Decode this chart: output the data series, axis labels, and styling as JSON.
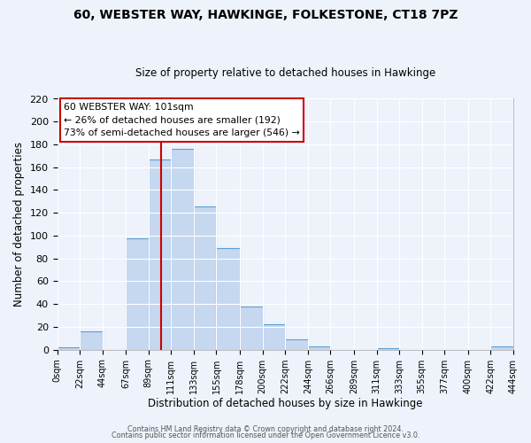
{
  "title": "60, WEBSTER WAY, HAWKINGE, FOLKESTONE, CT18 7PZ",
  "subtitle": "Size of property relative to detached houses in Hawkinge",
  "xlabel": "Distribution of detached houses by size in Hawkinge",
  "ylabel": "Number of detached properties",
  "bar_color": "#c5d8f0",
  "bar_edge_color": "#5a9fd4",
  "bg_color": "#eef2fb",
  "grid_color": "#ffffff",
  "bin_edges": [
    0,
    22,
    44,
    67,
    89,
    111,
    133,
    155,
    178,
    200,
    222,
    244,
    266,
    289,
    311,
    333,
    355,
    377,
    400,
    422,
    444
  ],
  "bin_labels": [
    "0sqm",
    "22sqm",
    "44sqm",
    "67sqm",
    "89sqm",
    "111sqm",
    "133sqm",
    "155sqm",
    "178sqm",
    "200sqm",
    "222sqm",
    "244sqm",
    "266sqm",
    "289sqm",
    "311sqm",
    "333sqm",
    "355sqm",
    "377sqm",
    "400sqm",
    "422sqm",
    "444sqm"
  ],
  "counts": [
    2,
    16,
    0,
    98,
    167,
    176,
    126,
    89,
    38,
    22,
    9,
    3,
    0,
    0,
    1,
    0,
    0,
    0,
    0,
    3
  ],
  "vline_x": 101,
  "vline_color": "#cc0000",
  "ylim": [
    0,
    220
  ],
  "yticks": [
    0,
    20,
    40,
    60,
    80,
    100,
    120,
    140,
    160,
    180,
    200,
    220
  ],
  "annotation_title": "60 WEBSTER WAY: 101sqm",
  "annotation_line1": "← 26% of detached houses are smaller (192)",
  "annotation_line2": "73% of semi-detached houses are larger (546) →",
  "annotation_box_color": "#ffffff",
  "annotation_box_edge": "#cc0000",
  "footer1": "Contains HM Land Registry data © Crown copyright and database right 2024.",
  "footer2": "Contains public sector information licensed under the Open Government Licence v3.0."
}
